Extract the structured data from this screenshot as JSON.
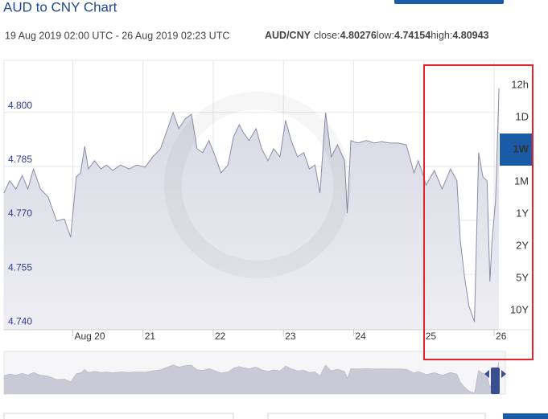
{
  "chart_data": {
    "type": "area",
    "title": "AUD to CNY Chart",
    "subtitle": "19 Aug 2019 02:00 UTC - 26 Aug 2019 02:23 UTC",
    "pair": "AUD/CNY",
    "stats": [
      {
        "label": "close:",
        "value": 4.80276
      },
      {
        "label": "low:",
        "value": 4.74154
      },
      {
        "label": "high:",
        "value": 4.80943
      }
    ],
    "range_buttons": [
      "12h",
      "1D",
      "1W",
      "1M",
      "1Y",
      "2Y",
      "5Y",
      "10Y"
    ],
    "active_range": "1W",
    "color": "#8a8ca8",
    "fill": "#dcdde7",
    "grid": true,
    "x": [
      19.02,
      19.1,
      19.19,
      19.28,
      19.36,
      19.44,
      19.54,
      19.65,
      19.77,
      19.88,
      19.97,
      20.05,
      20.11,
      20.17,
      20.22,
      20.31,
      20.4,
      20.48,
      20.57,
      20.68,
      20.8,
      20.91,
      21.03,
      21.14,
      21.25,
      21.35,
      21.43,
      21.51,
      21.6,
      21.69,
      21.77,
      21.85,
      21.94,
      22.03,
      22.11,
      22.21,
      22.29,
      22.37,
      22.43,
      22.51,
      22.61,
      22.69,
      22.78,
      22.86,
      22.95,
      23.03,
      23.11,
      23.2,
      23.29,
      23.37,
      23.45,
      23.52,
      23.6,
      23.68,
      23.77,
      23.87,
      23.91,
      23.96,
      24.06,
      24.18,
      24.29,
      24.4,
      24.52,
      24.63,
      24.75,
      24.86,
      24.92,
      24.98,
      25.03,
      25.15,
      25.26,
      25.38,
      25.47,
      25.52,
      25.58,
      25.64,
      25.72,
      25.78,
      25.84,
      25.9,
      25.94,
      25.97,
      26.02,
      26.07
    ],
    "values": [
      4.7776,
      4.781,
      4.7787,
      4.7825,
      4.7787,
      4.7843,
      4.7787,
      4.7765,
      4.7698,
      4.7704,
      4.7653,
      4.7821,
      4.7832,
      4.7906,
      4.7843,
      4.7866,
      4.7843,
      4.7854,
      4.7839,
      4.7854,
      4.7843,
      4.7854,
      4.7848,
      4.7877,
      4.7899,
      4.7955,
      4.8,
      4.7955,
      4.7982,
      4.7995,
      4.7899,
      4.7888,
      4.7922,
      4.7877,
      4.7832,
      4.7854,
      4.7933,
      4.7966,
      4.7944,
      4.7922,
      4.7955,
      4.7899,
      4.7866,
      4.7899,
      4.7877,
      4.7978,
      4.7922,
      4.7877,
      4.7888,
      4.7843,
      4.7854,
      4.7776,
      4.8,
      4.7877,
      4.791,
      4.7866,
      4.772,
      4.7922,
      4.7915,
      4.7922,
      4.7915,
      4.7919,
      4.7915,
      4.7915,
      4.791,
      4.7832,
      4.7866,
      4.7832,
      4.7798,
      4.7839,
      4.7787,
      4.7843,
      4.781,
      4.7642,
      4.7541,
      4.7463,
      4.7418,
      4.7888,
      4.7821,
      4.781,
      4.753,
      4.7642,
      4.7754,
      4.8067
    ],
    "xlim": [
      19.0,
      26.08
    ],
    "xticks": [
      {
        "value": 20,
        "label": "Aug 20"
      },
      21,
      22,
      23,
      24,
      25,
      26
    ],
    "ylim": [
      4.7396,
      4.8145
    ],
    "yticks": [
      {
        "value": 4.74,
        "label": "4.740"
      },
      4.755,
      {
        "value": 4.77,
        "label": "4.770"
      },
      4.785,
      {
        "value": 4.8,
        "label": "4.800"
      }
    ]
  }
}
